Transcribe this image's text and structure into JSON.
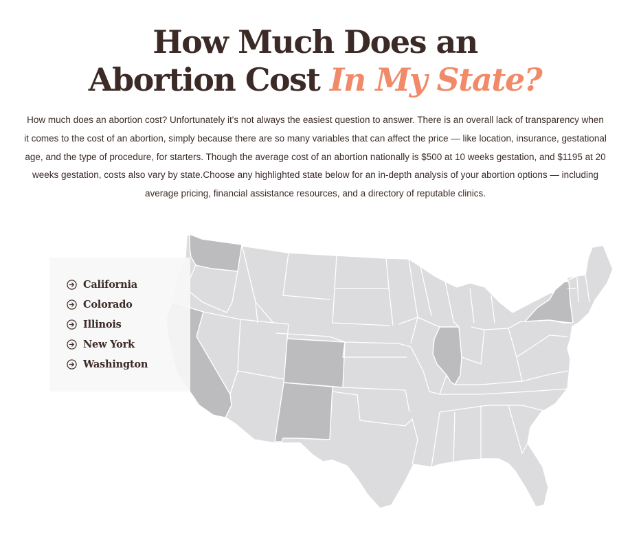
{
  "heading": {
    "line1": "How Much Does an",
    "line2": "Abortion Cost",
    "accent": "In My State?"
  },
  "intro": "How much does an abortion cost? Unfortunately it's not always the easiest question to answer. There is an overall lack of transparency when it comes to the cost of an abortion, simply because there are so many variables that can affect the price — like location, insurance, gestational age, and the type of procedure, for starters. Though the average cost of an abortion nationally is $500 at 10 weeks gestation, and $1195 at 20 weeks gestation, costs also vary by state.Choose any highlighted state below for an in-depth analysis of your abortion options — including average pricing, financial assistance resources, and a directory of reputable clinics.",
  "legend": {
    "states": [
      "California",
      "Colorado",
      "Illinois",
      "New York",
      "Washington"
    ]
  },
  "map": {
    "highlighted": [
      "Washington",
      "California",
      "Colorado",
      "New Mexico",
      "Illinois",
      "New York"
    ],
    "colors": {
      "land": "#dcdcde",
      "highlight": "#bcbcbf",
      "border": "#ffffff",
      "text": "#3b2a26",
      "accent": "#f08a68"
    }
  }
}
